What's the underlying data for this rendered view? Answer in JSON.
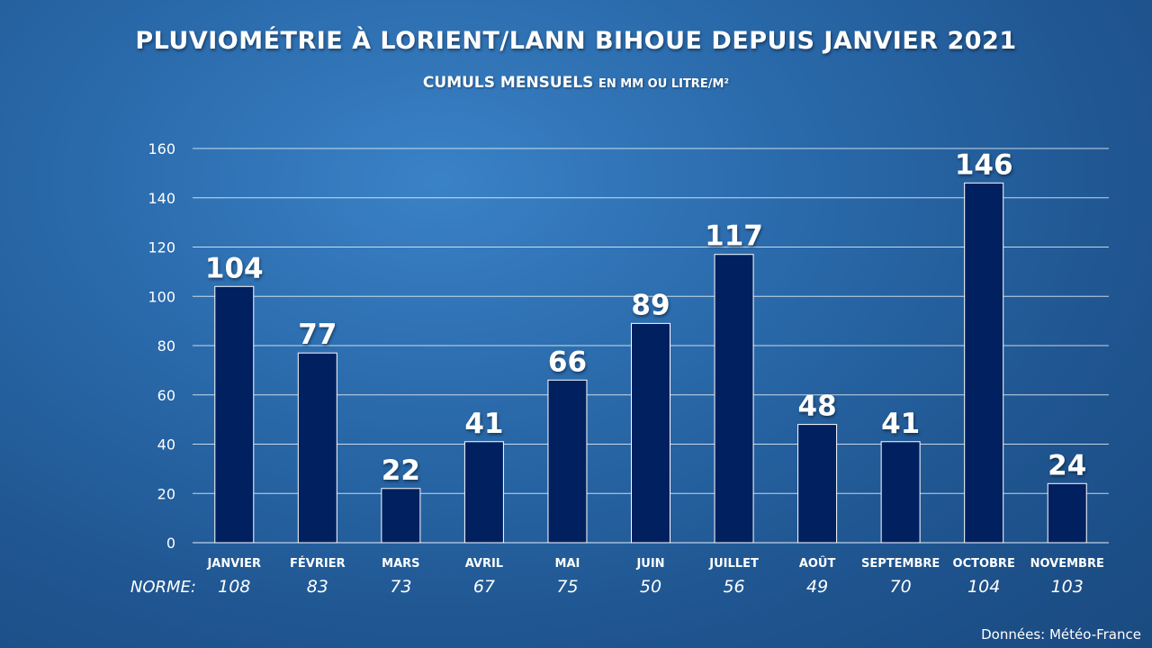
{
  "chart_data": {
    "type": "bar",
    "title": "PLUVIOMÉTRIE À LORIENT/LANN BIHOUE DEPUIS JANVIER 2021",
    "subtitle_main": "CUMULS MENSUELS",
    "subtitle_unit": "EN MM OU LITRE/M²",
    "categories": [
      "JANVIER",
      "FÉVRIER",
      "MARS",
      "AVRIL",
      "MAI",
      "JUIN",
      "JUILLET",
      "AOÛT",
      "SEPTEMBRE",
      "OCTOBRE",
      "NOVEMBRE"
    ],
    "values": [
      104,
      77,
      22,
      41,
      66,
      89,
      117,
      48,
      41,
      146,
      24
    ],
    "norm_label": "NORME:",
    "norms": [
      108,
      83,
      73,
      67,
      75,
      50,
      56,
      49,
      70,
      104,
      103
    ],
    "ylim": [
      0,
      160
    ],
    "yticks": [
      0,
      20,
      40,
      60,
      80,
      100,
      120,
      140,
      160
    ],
    "grid": true,
    "legend": "none",
    "bar_color": "#002060",
    "source": "Données: Météo-France"
  }
}
